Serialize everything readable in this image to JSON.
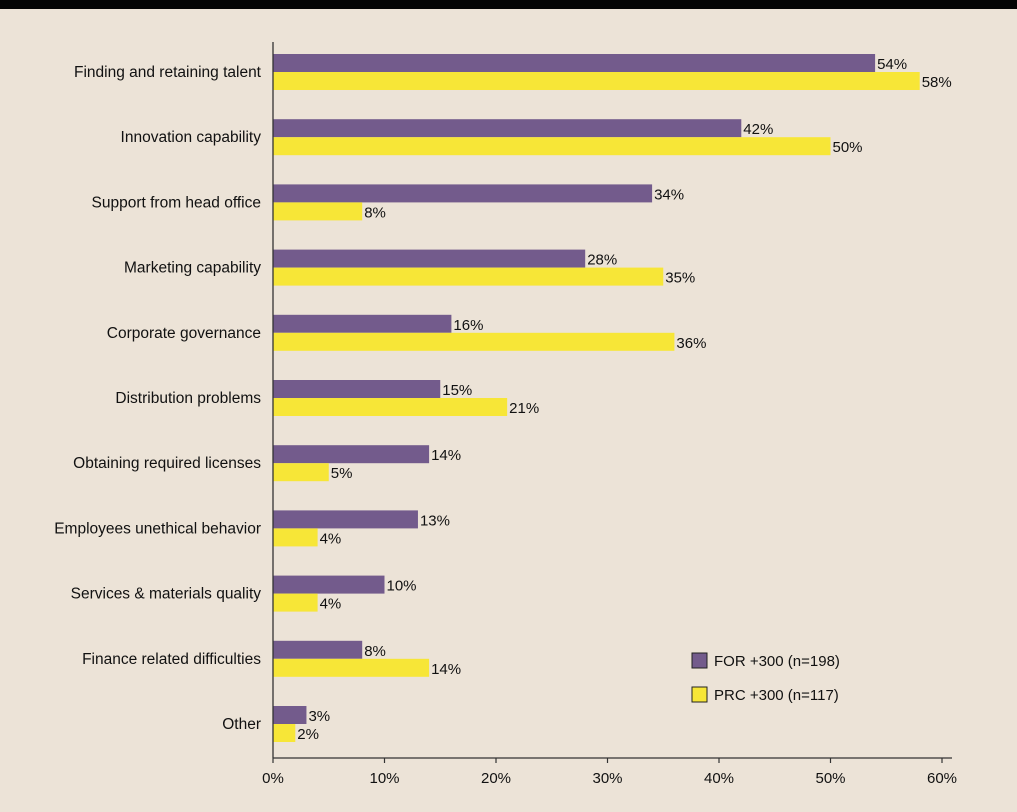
{
  "colors": {
    "background": "#ece3d7",
    "for_series": "#735b8c",
    "prc_series": "#f7e637",
    "axis": "#333333",
    "text": "#111111",
    "top_bar": "#050505"
  },
  "chart_data": {
    "type": "bar",
    "orientation": "horizontal",
    "categories": [
      "Finding and retaining talent",
      "Innovation capability",
      "Support from head office",
      "Marketing capability",
      "Corporate governance",
      "Distribution problems",
      "Obtaining required licenses",
      "Employees unethical behavior",
      "Services & materials quality",
      "Finance related difficulties",
      "Other"
    ],
    "series": [
      {
        "name": "FOR +300 (n=198)",
        "values": [
          54,
          42,
          34,
          28,
          16,
          15,
          14,
          13,
          10,
          8,
          3
        ],
        "labels": [
          "54%",
          "42%",
          "34%",
          "28%",
          "16%",
          "15%",
          "14%",
          "13%",
          "10%",
          "8%",
          "3%"
        ]
      },
      {
        "name": "PRC +300 (n=117)",
        "values": [
          58,
          50,
          8,
          35,
          36,
          21,
          5,
          4,
          4,
          14,
          2
        ],
        "labels": [
          "58%",
          "50%",
          "8%",
          "35%",
          "36%",
          "21%",
          "5%",
          "4%",
          "4%",
          "14%",
          "2%"
        ]
      }
    ],
    "xlim": [
      0,
      63
    ],
    "x_ticks": [
      0,
      10,
      20,
      30,
      40,
      50,
      60
    ],
    "x_tick_labels": [
      "0%",
      "10%",
      "20%",
      "30%",
      "40%",
      "50%",
      "60%"
    ],
    "grid": false,
    "legend": "bottom-right",
    "title": "",
    "xlabel": "",
    "ylabel": ""
  }
}
